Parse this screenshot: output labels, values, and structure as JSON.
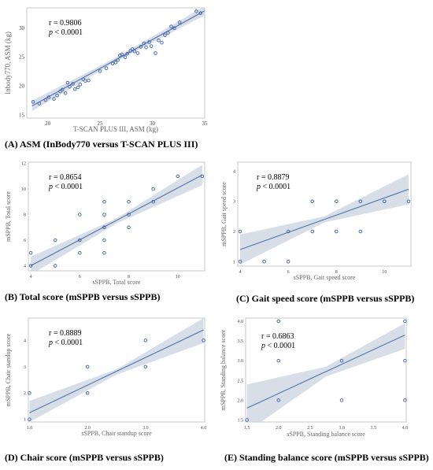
{
  "chart_data": [
    {
      "id": "A",
      "type": "scatter",
      "title": "",
      "xlabel": "T-SCAN PLUS III, ASM (kg)",
      "ylabel": "Inbody770, ASM (kg)",
      "xlim": [
        18,
        35
      ],
      "ylim": [
        14.5,
        33.5
      ],
      "xticks": [
        20,
        25,
        30,
        35
      ],
      "yticks": [
        15,
        20,
        25,
        30
      ],
      "stats": {
        "r": "r = 0.9806",
        "p": "p",
        "p_rest": " < 0.0001"
      },
      "caption": "(A) ASM (InBody770 versus T-SCAN PLUS III)",
      "fit": {
        "x": [
          18.5,
          35
        ],
        "y": [
          16.6,
          33.0
        ]
      },
      "band": {
        "x": [
          18.5,
          26.5,
          35
        ],
        "upper": [
          17.5,
          24.9,
          33.8
        ],
        "lower": [
          15.7,
          24.2,
          32.2
        ]
      },
      "points": [
        [
          18.6,
          17.3
        ],
        [
          19.2,
          17.0
        ],
        [
          19.8,
          17.6
        ],
        [
          20.1,
          18.1
        ],
        [
          20.6,
          17.8
        ],
        [
          20.9,
          18.4
        ],
        [
          21.2,
          19.1
        ],
        [
          21.4,
          19.4
        ],
        [
          21.7,
          18.8
        ],
        [
          21.9,
          20.6
        ],
        [
          22.1,
          19.9
        ],
        [
          22.4,
          20.4
        ],
        [
          22.6,
          19.5
        ],
        [
          22.9,
          19.8
        ],
        [
          23.1,
          20.3
        ],
        [
          23.4,
          21.2
        ],
        [
          23.6,
          20.9
        ],
        [
          23.9,
          21.0
        ],
        [
          25.0,
          22.6
        ],
        [
          25.6,
          23.1
        ],
        [
          26.2,
          23.9
        ],
        [
          26.5,
          24.1
        ],
        [
          26.7,
          24.5
        ],
        [
          26.9,
          25.3
        ],
        [
          27.1,
          25.5
        ],
        [
          27.4,
          25.0
        ],
        [
          27.6,
          25.6
        ],
        [
          27.9,
          26.1
        ],
        [
          28.1,
          26.4
        ],
        [
          28.3,
          26.0
        ],
        [
          28.6,
          25.7
        ],
        [
          28.9,
          26.8
        ],
        [
          29.2,
          27.4
        ],
        [
          29.4,
          26.7
        ],
        [
          29.7,
          27.6
        ],
        [
          29.9,
          26.9
        ],
        [
          30.3,
          25.7
        ],
        [
          30.6,
          27.9
        ],
        [
          30.9,
          27.5
        ],
        [
          31.2,
          28.8
        ],
        [
          31.5,
          29.2
        ],
        [
          31.8,
          30.3
        ],
        [
          32.1,
          30.0
        ],
        [
          32.6,
          31.0
        ],
        [
          34.2,
          32.9
        ],
        [
          34.6,
          32.6
        ]
      ]
    },
    {
      "id": "B",
      "type": "scatter",
      "title": "",
      "xlabel": "sSPPB, Total score",
      "ylabel": "mSPPB, Total score",
      "xlim": [
        3.9,
        11.1
      ],
      "ylim": [
        3.6,
        12.1
      ],
      "xticks": [
        4,
        6,
        8,
        10
      ],
      "yticks": [
        4,
        6,
        8,
        10,
        12
      ],
      "stats": {
        "r": "r = 0.8654",
        "p": "p",
        "p_rest": " < 0.0001"
      },
      "caption": "(B) Total score (mSPPB versus sSPPB)",
      "fit": {
        "x": [
          4,
          11
        ],
        "y": [
          4.0,
          11.1
        ]
      },
      "band": {
        "x": [
          4,
          7.5,
          11
        ],
        "upper": [
          4.7,
          7.7,
          11.9
        ],
        "lower": [
          3.3,
          7.3,
          10.3
        ]
      },
      "points": [
        [
          4,
          4
        ],
        [
          4,
          5
        ],
        [
          5,
          4
        ],
        [
          5,
          6
        ],
        [
          6,
          5
        ],
        [
          6,
          6
        ],
        [
          6,
          8
        ],
        [
          7,
          5
        ],
        [
          7,
          6
        ],
        [
          7,
          7
        ],
        [
          7,
          8
        ],
        [
          7,
          9
        ],
        [
          8,
          7
        ],
        [
          8,
          8
        ],
        [
          8,
          9
        ],
        [
          9,
          9
        ],
        [
          9,
          10
        ],
        [
          10,
          11
        ],
        [
          11,
          11
        ]
      ]
    },
    {
      "id": "C",
      "type": "scatter",
      "title": "",
      "xlabel": "sSPPB, Gait speed score",
      "ylabel": "mSPPB, Gait speed score",
      "xlim": [
        3.9,
        11.1
      ],
      "ylim": [
        0.85,
        4.3
      ],
      "xticks": [
        4,
        6,
        8,
        10
      ],
      "yticks": [
        1,
        2,
        3,
        4
      ],
      "stats": {
        "r": "r = 0.8879",
        "p": "p",
        "p_rest": " < 0.0001"
      },
      "caption": "(C) Gait speed score (mSPPB versus sSPPB)",
      "fit": {
        "x": [
          4,
          11
        ],
        "y": [
          1.4,
          3.4
        ]
      },
      "band": {
        "x": [
          4,
          7.5,
          11
        ],
        "upper": [
          1.9,
          2.5,
          3.9
        ],
        "lower": [
          0.9,
          2.3,
          2.9
        ]
      },
      "points": [
        [
          4,
          1
        ],
        [
          4,
          2
        ],
        [
          5,
          1
        ],
        [
          6,
          1
        ],
        [
          6,
          2
        ],
        [
          7,
          2
        ],
        [
          7,
          3
        ],
        [
          8,
          2
        ],
        [
          8,
          3
        ],
        [
          9,
          2
        ],
        [
          9,
          3
        ],
        [
          10,
          3
        ],
        [
          11,
          3
        ]
      ]
    },
    {
      "id": "D",
      "type": "scatter",
      "title": "",
      "xlabel": "sSPPB, Chair standup score",
      "ylabel": "mSPPB, Chair standup score",
      "xlim": [
        0.98,
        4.02
      ],
      "ylim": [
        0.9,
        4.85
      ],
      "xticks": [
        1.0,
        2.0,
        3.0,
        4.0
      ],
      "yticks": [
        1,
        2,
        3,
        4
      ],
      "stats": {
        "r": "r = 0.8889",
        "p": "p",
        "p_rest": " < 0.0001"
      },
      "caption": "(D) Chair score (mSPPB versus sSPPB)",
      "fit": {
        "x": [
          1,
          4
        ],
        "y": [
          1.25,
          4.4
        ]
      },
      "band": {
        "x": [
          1,
          2.5,
          4
        ],
        "upper": [
          1.7,
          2.9,
          4.85
        ],
        "lower": [
          0.9,
          2.7,
          3.9
        ]
      },
      "points": [
        [
          1,
          1
        ],
        [
          1,
          2
        ],
        [
          2,
          2
        ],
        [
          2,
          3
        ],
        [
          3,
          3
        ],
        [
          3,
          4
        ],
        [
          4,
          4
        ]
      ]
    },
    {
      "id": "E",
      "type": "scatter",
      "title": "",
      "xlabel": "sSPPB, Standing balance score",
      "ylabel": "mSPPB, Standing balance score",
      "xlim": [
        1.48,
        4.02
      ],
      "ylim": [
        1.45,
        4.08
      ],
      "xticks": [
        1.5,
        2.0,
        2.5,
        3.0,
        3.5,
        4.0
      ],
      "yticks": [
        1.5,
        2.0,
        2.5,
        3.0,
        3.5,
        4.0
      ],
      "stats": {
        "r": "r = 0.6863",
        "p": "p",
        "p_rest": " < 0.0001"
      },
      "caption": "(E) Standing balance score (mSPPB versus sSPPB)",
      "fit": {
        "x": [
          1.5,
          4
        ],
        "y": [
          1.8,
          3.65
        ]
      },
      "band": {
        "x": [
          1.5,
          2.75,
          4
        ],
        "upper": [
          2.4,
          2.85,
          3.95
        ],
        "lower": [
          1.2,
          2.6,
          3.3
        ]
      },
      "points": [
        [
          1.5,
          1.5
        ],
        [
          2,
          2
        ],
        [
          2,
          3
        ],
        [
          2,
          4
        ],
        [
          3,
          2
        ],
        [
          3,
          3
        ],
        [
          4,
          2
        ],
        [
          4,
          3
        ],
        [
          4,
          4
        ]
      ]
    }
  ]
}
